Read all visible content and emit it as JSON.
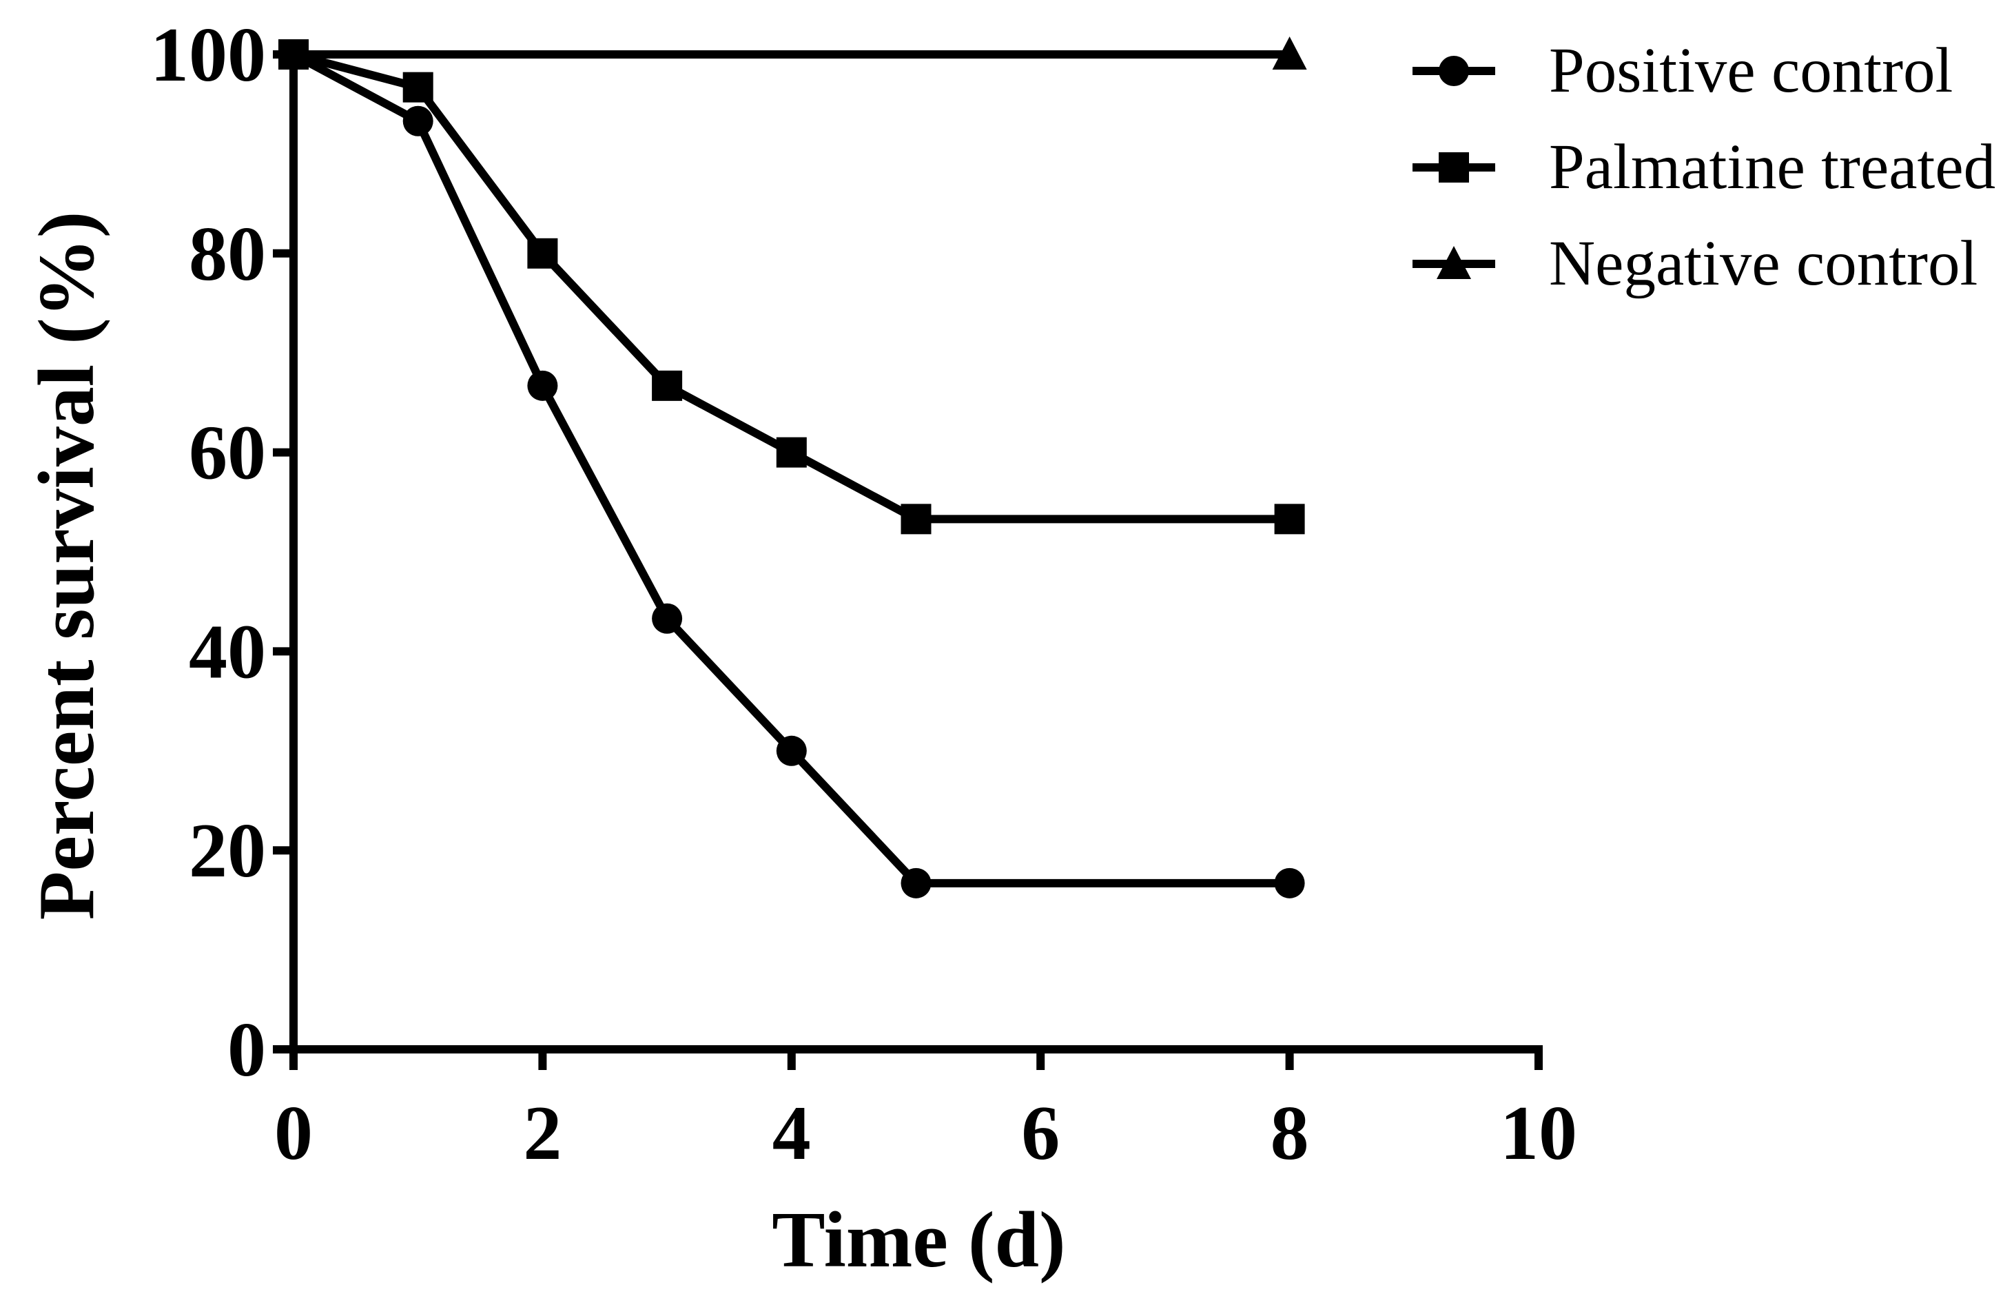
{
  "chart_data": {
    "type": "line",
    "title": "",
    "xlabel": "Time (d)",
    "ylabel": "Percent survival (%)",
    "xlim": [
      0,
      10
    ],
    "ylim": [
      0,
      100
    ],
    "x_ticks": [
      0,
      2,
      4,
      6,
      8,
      10
    ],
    "x_tick_labels": [
      "0",
      "2",
      "4",
      "6",
      "8",
      "10"
    ],
    "y_ticks": [
      0,
      20,
      40,
      60,
      80,
      100
    ],
    "y_tick_labels": [
      "0",
      "20",
      "40",
      "60",
      "80",
      "100"
    ],
    "grid": false,
    "legend_position": "top-right",
    "series": [
      {
        "name": "Positive control",
        "marker": "circle",
        "x": [
          0,
          1,
          2,
          3,
          4,
          5,
          8
        ],
        "y": [
          100,
          93.3,
          66.7,
          43.3,
          30,
          16.7,
          16.7
        ]
      },
      {
        "name": "Palmatine  treated",
        "marker": "square",
        "x": [
          0,
          1,
          2,
          3,
          4,
          5,
          8
        ],
        "y": [
          100,
          96.7,
          80,
          66.7,
          60,
          53.3,
          53.3
        ]
      },
      {
        "name": "Negative control",
        "marker": "triangle",
        "x": [
          0,
          8
        ],
        "y": [
          100,
          100
        ]
      }
    ],
    "colors": {
      "line": "#000000",
      "background": "#ffffff"
    }
  }
}
